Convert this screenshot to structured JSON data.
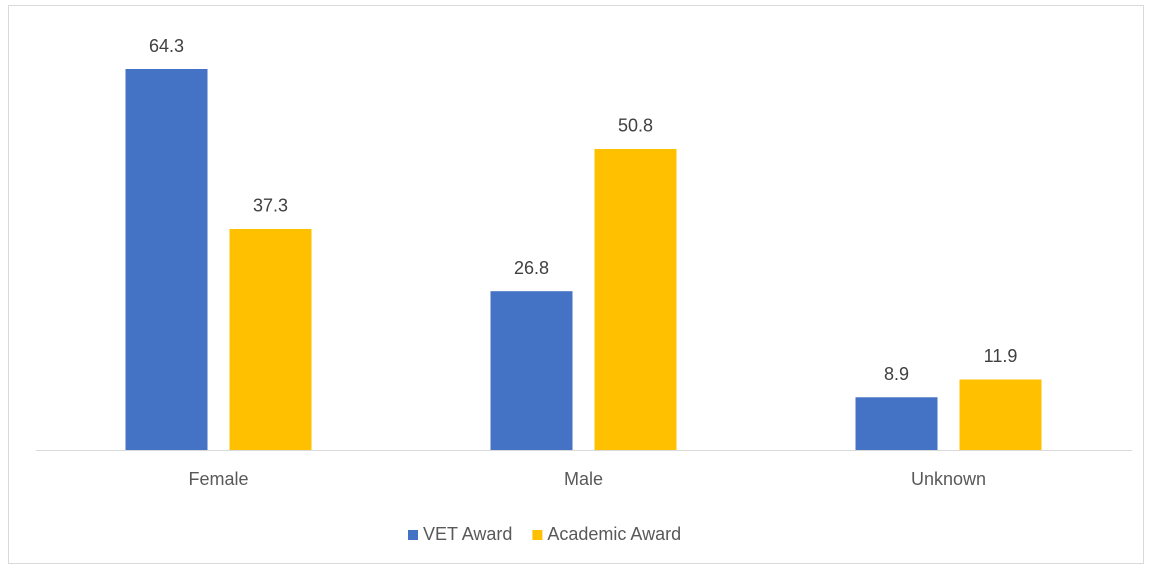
{
  "chart_data": {
    "type": "bar",
    "categories": [
      "Female",
      "Male",
      "Unknown"
    ],
    "series": [
      {
        "name": "VET Award",
        "color": "#4472c4",
        "values": [
          64.3,
          26.8,
          8.9
        ]
      },
      {
        "name": "Academic Award",
        "color": "#ffc000",
        "values": [
          37.3,
          50.8,
          11.9
        ]
      }
    ],
    "legend": "bottom"
  }
}
